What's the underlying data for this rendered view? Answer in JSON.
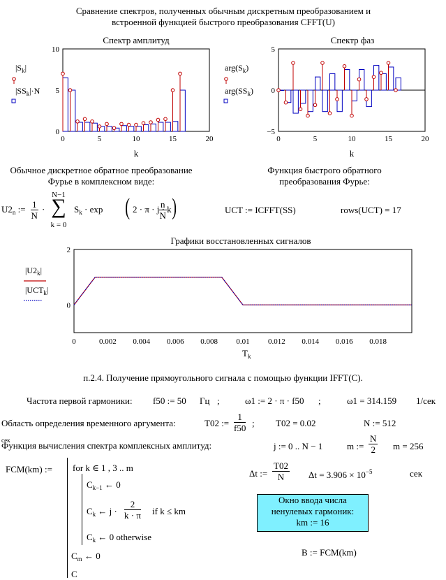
{
  "header": {
    "line1": "Сравнение спектров, полученных обычным дискретным преобразованием и",
    "line2": "встроенной функцией быстрого преобразования CFFT(U)"
  },
  "amp_chart": {
    "title": "Спектр амплитуд",
    "xlabel": "k",
    "legend1": "|S",
    "legend1_sub": "k",
    "legend1_end": "|",
    "legend2": "|SS",
    "legend2_sub": "k",
    "legend2_end": "|·N",
    "y_ticks": [
      "10",
      "5",
      "0"
    ],
    "x_ticks": [
      "0",
      "5",
      "10",
      "15",
      "20"
    ]
  },
  "phase_chart": {
    "title": "Спектр фаз",
    "xlabel": "k",
    "legend1": "arg(S",
    "legend1_sub": "k",
    "legend1_end": ")",
    "legend2": "arg(SS",
    "legend2_sub": "k",
    "legend2_end": ")",
    "y_ticks": [
      "5",
      "0",
      "−5"
    ],
    "x_ticks": [
      "0",
      "5",
      "10",
      "15",
      "20"
    ]
  },
  "chart_data": [
    {
      "type": "bar",
      "title": "Спектр амплитуд",
      "xlabel": "k",
      "xlim": [
        0,
        20
      ],
      "ylim": [
        0,
        10
      ],
      "k": [
        0,
        1,
        2,
        3,
        4,
        5,
        6,
        7,
        8,
        9,
        10,
        11,
        12,
        13,
        14,
        15,
        16
      ],
      "series": [
        {
          "name": "|Sk|",
          "style": "stem-red-circle",
          "values": [
            7.0,
            5.0,
            1.2,
            1.5,
            1.2,
            0.6,
            0.9,
            0.4,
            0.9,
            0.8,
            0.8,
            1.0,
            1.1,
            1.4,
            1.5,
            5.0,
            7.0
          ]
        },
        {
          "name": "|SSk|·N",
          "style": "bar-blue-outline",
          "values": [
            6.5,
            5.0,
            1.1,
            1.1,
            1.0,
            0.6,
            0.6,
            0.4,
            0.7,
            0.6,
            0.6,
            0.8,
            0.9,
            1.1,
            1.1,
            1.2,
            5.0
          ]
        }
      ]
    },
    {
      "type": "bar",
      "title": "Спектр фаз",
      "xlabel": "k",
      "xlim": [
        0,
        20
      ],
      "ylim": [
        -5,
        5
      ],
      "k": [
        0,
        1,
        2,
        3,
        4,
        5,
        6,
        7,
        8,
        9,
        10,
        11,
        12,
        13,
        14,
        15,
        16
      ],
      "series": [
        {
          "name": "arg(Sk)",
          "style": "stem-red-circle",
          "values": [
            0,
            -1.5,
            3.3,
            -2.3,
            -3.1,
            -1.8,
            3.3,
            -2.8,
            -1.1,
            2.9,
            -3.1,
            1.3,
            -1.1,
            1.6,
            2.1,
            3.3,
            0
          ]
        },
        {
          "name": "arg(SSk)",
          "style": "bar-blue-outline",
          "values": [
            0,
            -1.5,
            -2.8,
            -1.6,
            -2.6,
            1.6,
            -2.6,
            2.0,
            -2.6,
            2.5,
            -1.3,
            2.5,
            -2.0,
            3.0,
            2.0,
            2.8,
            1.5
          ]
        }
      ]
    },
    {
      "type": "line",
      "title": "Графики восстановленных сигналов",
      "xlabel": "T_k",
      "xlim": [
        0,
        0.02
      ],
      "ylim": [
        -1,
        2
      ],
      "series": [
        {
          "name": "|U2k|",
          "color": "#c00000",
          "style": "solid",
          "x": [
            0,
            0.00125,
            0.00875,
            0.01,
            0.02
          ],
          "y": [
            0,
            1,
            1,
            0,
            0
          ]
        },
        {
          "name": "|UCTk|",
          "color": "#0000c0",
          "style": "dotted",
          "x": [
            0,
            0.00125,
            0.00875,
            0.01,
            0.02
          ],
          "y": [
            0,
            1,
            1,
            0,
            0
          ]
        }
      ]
    }
  ],
  "inverse": {
    "left_title1": "Обычное дискретное обратное преобразование",
    "left_title2": "Фурье в комплексном виде:",
    "right_title1": "Функция быстрого обратного",
    "right_title2": "преобразования Фурье:",
    "u2_lhs": "U2",
    "u2_sub": "n",
    "assign": ":=",
    "one": "1",
    "N": "N",
    "sum_top": "N−1",
    "sum_bot": "k = 0",
    "sk": "S",
    "sk_sub": "k",
    "exp_part": "· exp",
    "exp_inner": "2 · π · j · k ·",
    "n_letter": "n",
    "uct_def": "UCT := ICFFT(SS)",
    "rows_def": "rows(UCT) = 17"
  },
  "signal_chart": {
    "title": "Графики восстановленных сигналов",
    "y_ticks": [
      "2",
      "0"
    ],
    "x_ticks": [
      "0",
      "0.002",
      "0.004",
      "0.006",
      "0.008",
      "0.01",
      "0.012",
      "0.014",
      "0.016",
      "0.018"
    ],
    "xlabel": "T",
    "xlabel_sub": "k",
    "legend1": "|U2",
    "legend1_sub": "k",
    "legend1_end": "|",
    "legend2": "|UCT",
    "legend2_sub": "k",
    "legend2_end": "|"
  },
  "section": {
    "title": "п.2.4. Получение прямоугольного сигнала с помощью функции IFFT(C).",
    "freq_label": "Частота первой гармоники:",
    "f50_def": "f50 := 50",
    "f50_unit": "Гц",
    "semicolon": ";",
    "omega_def": "ω1 := 2 · π · f50",
    "omega_val": "ω1 = 314.159",
    "omega_unit": "1/сек",
    "domain_label": "Область определения временного аргумента:",
    "T02_lhs": "T02 :=",
    "T02_num": "1",
    "T02_den": "f50",
    "T02_val": "T02 = 0.02",
    "N_def": "N := 512",
    "func_label": "Функция вычисления спектра комплексных амплитуд:",
    "overlay_text": "сек",
    "j_def": "j := 0 .. N − 1",
    "m_lhs": "m :=",
    "m_num": "N",
    "m_den": "2",
    "m_val": "m = 256",
    "dt_lhs": "Δt :=",
    "dt_num": "T02",
    "dt_den": "N",
    "dt_val_base": "Δt = 3.906 × 10",
    "dt_exp": "−5",
    "dt_unit": "сек"
  },
  "program": {
    "fcm_lhs": "FCM(km) :=",
    "line_for": "for  k ∈ 1 , 3 .. m",
    "line_ck1": "C",
    "line_ck1_sub": "k−1",
    "line_ck1_rest": "← 0",
    "line_ck2": "C",
    "line_ck2_sub": "k",
    "line_ck2_rest": "← j ·",
    "frac_num": "2",
    "frac_den": "k · π",
    "line_ck2_if": "if  k ≤ km",
    "line_ck3": "C",
    "line_ck3_sub": "k",
    "line_ck3_rest": "← 0  otherwise",
    "line_cm": "C",
    "line_cm_sub": "m",
    "line_cm_rest": "← 0",
    "line_c": "C"
  },
  "input_box": {
    "line1": "Окно ввода числа",
    "line2": "ненулевых гармоник:",
    "line3": "km := 16"
  },
  "b_def": "B := FCM(km)"
}
